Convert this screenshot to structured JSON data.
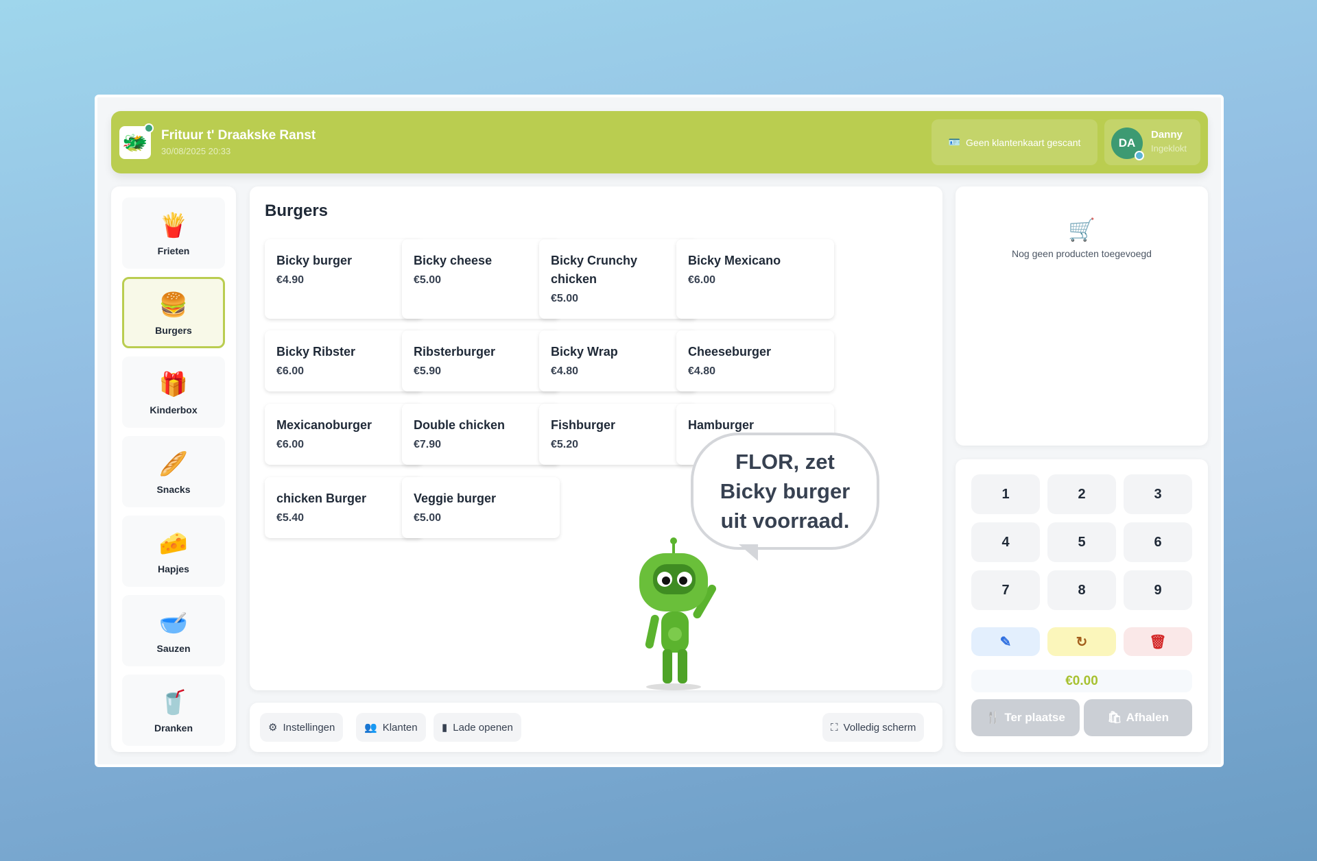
{
  "header": {
    "title": "Frituur t' Draakske Ranst",
    "datetime": "30/08/2025 20:33",
    "loyalty_card": "Geen klantenkaart gescant",
    "user": {
      "initials": "DA",
      "name": "Danny",
      "status": "Ingeklokt"
    },
    "accent": "#bacd50"
  },
  "sidebar": {
    "items": [
      {
        "label": "Frieten",
        "icon": "🍟"
      },
      {
        "label": "Burgers",
        "icon": "🍔",
        "active": true
      },
      {
        "label": "Kinderbox",
        "icon": "🎁"
      },
      {
        "label": "Snacks",
        "icon": "🥖"
      },
      {
        "label": "Hapjes",
        "icon": "🧀"
      },
      {
        "label": "Sauzen",
        "icon": "🥣"
      },
      {
        "label": "Dranken",
        "icon": "🥤"
      }
    ]
  },
  "main": {
    "title": "Burgers",
    "products": [
      {
        "name": "Bicky burger",
        "price": "€4.90"
      },
      {
        "name": "Bicky cheese",
        "price": "€5.00"
      },
      {
        "name": "Bicky Crunchy chicken",
        "price": "€5.00"
      },
      {
        "name": "Bicky Mexicano",
        "price": "€6.00"
      },
      {
        "name": "Bicky Ribster",
        "price": "€6.00"
      },
      {
        "name": "Ribsterburger",
        "price": "€5.90"
      },
      {
        "name": "Bicky Wrap",
        "price": "€4.80"
      },
      {
        "name": "Cheeseburger",
        "price": "€4.80"
      },
      {
        "name": "Mexicanoburger",
        "price": "€6.00"
      },
      {
        "name": "Double chicken",
        "price": "€7.90"
      },
      {
        "name": "Fishburger",
        "price": "€5.20"
      },
      {
        "name": "Hamburger",
        "price": ""
      },
      {
        "name": "chicken Burger",
        "price": "€5.40"
      },
      {
        "name": "Veggie burger",
        "price": "€5.00"
      }
    ],
    "assistant_message": "FLOR, zet Bicky burger uit voorraad."
  },
  "bottom": {
    "settings": "Instellingen",
    "customers": "Klanten",
    "open_drawer": "Lade openen",
    "fullscreen": "Volledig scherm"
  },
  "cart": {
    "empty": "Nog geen producten toegevoegd"
  },
  "keypad": {
    "keys": [
      "1",
      "2",
      "3",
      "4",
      "5",
      "6",
      "7",
      "8",
      "9"
    ],
    "total": "€0.00",
    "dine_in": "Ter plaatse",
    "takeaway": "Afhalen"
  }
}
